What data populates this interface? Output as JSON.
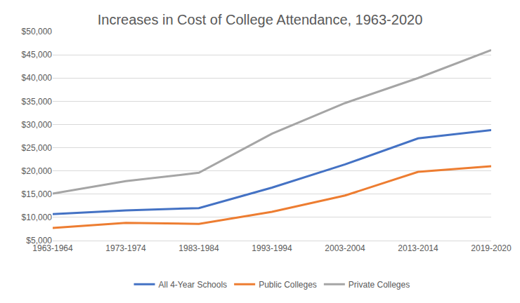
{
  "chart_data": {
    "type": "line",
    "title": "Increases in Cost of College Attendance, 1963-2020",
    "categories": [
      "1963-1964",
      "1973-1974",
      "1983-1984",
      "1993-1994",
      "2003-2004",
      "2013-2014",
      "2019-2020"
    ],
    "series": [
      {
        "name": "All 4-Year Schools",
        "color": "#4472c4",
        "values": [
          10700,
          11500,
          12000,
          16400,
          21400,
          27000,
          28800
        ]
      },
      {
        "name": "Public Colleges",
        "color": "#ed7d31",
        "values": [
          7700,
          8800,
          8600,
          11200,
          14700,
          19800,
          21000
        ]
      },
      {
        "name": "Private Colleges",
        "color": "#a5a5a5",
        "values": [
          15100,
          17800,
          19600,
          28000,
          34600,
          40000,
          46000
        ]
      }
    ],
    "ylim": [
      5000,
      50000
    ],
    "yticks": [
      {
        "value": 5000,
        "label": "$5,000"
      },
      {
        "value": 10000,
        "label": "$10,000"
      },
      {
        "value": 15000,
        "label": "$15,000"
      },
      {
        "value": 20000,
        "label": "$20,000"
      },
      {
        "value": 25000,
        "label": "$25,000"
      },
      {
        "value": 30000,
        "label": "$30,000"
      },
      {
        "value": 35000,
        "label": "$35,000"
      },
      {
        "value": 40000,
        "label": "$40,000"
      },
      {
        "value": 45000,
        "label": "$45,000"
      },
      {
        "value": 50000,
        "label": "$50,000"
      }
    ],
    "grid": true,
    "legend": "bottom"
  }
}
